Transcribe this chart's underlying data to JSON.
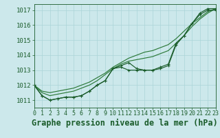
{
  "title": "Graphe pression niveau de la mer (hPa)",
  "hours": [
    0,
    1,
    2,
    3,
    4,
    5,
    6,
    7,
    8,
    9,
    10,
    11,
    12,
    13,
    14,
    15,
    16,
    17,
    18,
    19,
    20,
    21,
    22,
    23
  ],
  "line_marked1": [
    1012.0,
    1011.3,
    1011.0,
    1011.1,
    1011.2,
    1011.2,
    1011.3,
    1011.6,
    1012.0,
    1012.3,
    1013.1,
    1013.2,
    1013.0,
    1013.0,
    1013.0,
    1013.0,
    1013.1,
    1013.3,
    1014.7,
    1015.3,
    1016.1,
    1016.7,
    1017.0,
    1017.0
  ],
  "line_marked2": [
    1012.0,
    1011.3,
    1011.0,
    1011.1,
    1011.2,
    1011.2,
    1011.3,
    1011.6,
    1012.0,
    1012.3,
    1013.1,
    1013.3,
    1013.5,
    1013.1,
    1013.0,
    1013.0,
    1013.2,
    1013.4,
    1014.8,
    1015.3,
    1016.1,
    1016.8,
    1017.1,
    1017.1
  ],
  "line_smooth1": [
    1012.0,
    1011.5,
    1011.3,
    1011.4,
    1011.5,
    1011.6,
    1011.8,
    1012.0,
    1012.3,
    1012.7,
    1013.1,
    1013.4,
    1013.6,
    1013.7,
    1013.8,
    1013.9,
    1014.1,
    1014.3,
    1014.8,
    1015.3,
    1015.9,
    1016.4,
    1016.8,
    1017.1
  ],
  "line_smooth2": [
    1012.0,
    1011.6,
    1011.5,
    1011.6,
    1011.7,
    1011.8,
    1012.0,
    1012.2,
    1012.5,
    1012.8,
    1013.2,
    1013.5,
    1013.8,
    1014.0,
    1014.2,
    1014.3,
    1014.5,
    1014.7,
    1015.1,
    1015.6,
    1016.1,
    1016.5,
    1016.9,
    1017.1
  ],
  "ylim": [
    1010.5,
    1017.4
  ],
  "xlim": [
    0,
    23
  ],
  "bg_color": "#cce8eb",
  "grid_color": "#aad4d8",
  "line_dark": "#1a5c2a",
  "line_light": "#2d7a3a",
  "tick_fontsize": 6.5,
  "title_fontsize": 8.5
}
